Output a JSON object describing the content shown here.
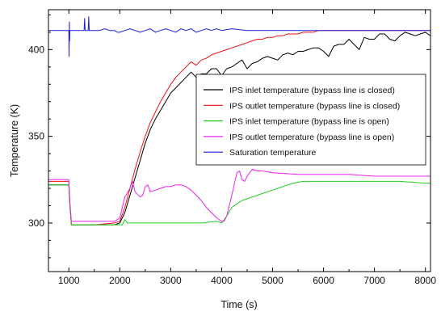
{
  "chart_data": {
    "type": "line",
    "title": "",
    "xlabel": "Time (s)",
    "ylabel": "Temperature (K)",
    "xlim": [
      600,
      8100
    ],
    "ylim": [
      272,
      423
    ],
    "xticks": [
      1000,
      2000,
      3000,
      4000,
      5000,
      6000,
      7000,
      8000
    ],
    "yticks": [
      300,
      350,
      400
    ],
    "grid": false,
    "legend_position": "center-right",
    "series": [
      {
        "name": "IPS inlet temperature (bypass line is closed)",
        "color": "#000000",
        "x": [
          600,
          1000,
          1020,
          1050,
          1100,
          1200,
          1500,
          1900,
          2000,
          2100,
          2200,
          2300,
          2400,
          2500,
          2600,
          2700,
          2800,
          2900,
          3000,
          3100,
          3200,
          3300,
          3400,
          3500,
          3600,
          3700,
          3800,
          3900,
          4000,
          4100,
          4200,
          4300,
          4400,
          4500,
          4600,
          4700,
          4800,
          4900,
          5000,
          5100,
          5200,
          5300,
          5400,
          5500,
          5600,
          5700,
          5800,
          5900,
          6000,
          6100,
          6200,
          6300,
          6400,
          6500,
          6600,
          6700,
          6800,
          6900,
          7000,
          7100,
          7200,
          7300,
          7400,
          7500,
          7600,
          7700,
          7800,
          7900,
          8000,
          8100
        ],
        "values": [
          322,
          322,
          310,
          299,
          299,
          299,
          299,
          299,
          300,
          306,
          316,
          326,
          336,
          346,
          354,
          360,
          365,
          370,
          375,
          378,
          381,
          384,
          387,
          384,
          386,
          386,
          389,
          389,
          385,
          389,
          390,
          392,
          394,
          389,
          392,
          393,
          395,
          396,
          395,
          394,
          397,
          398,
          397,
          399,
          399,
          400,
          401,
          401,
          399,
          396,
          402,
          403,
          403,
          406,
          403,
          400,
          407,
          406,
          406,
          409,
          409,
          406,
          405,
          408,
          410,
          409,
          408,
          409,
          410,
          408
        ]
      },
      {
        "name": "IPS outlet temperature (bypass line is closed)",
        "color": "#ee1111",
        "x": [
          600,
          1000,
          1020,
          1050,
          1100,
          1200,
          1500,
          1900,
          2000,
          2100,
          2200,
          2300,
          2400,
          2500,
          2600,
          2700,
          2800,
          2900,
          3000,
          3100,
          3200,
          3300,
          3400,
          3500,
          3600,
          3700,
          3800,
          3900,
          4000,
          4100,
          4200,
          4300,
          4400,
          4500,
          4600,
          4700,
          4800,
          4900,
          5000,
          5100,
          5200,
          5300,
          5400,
          5500,
          5600,
          5700,
          5800,
          5900,
          6000,
          6100,
          6200,
          6400,
          6600,
          6800,
          7000,
          7500,
          8000,
          8100
        ],
        "values": [
          324,
          324,
          312,
          299,
          299,
          299,
          299,
          300,
          301,
          309,
          320,
          331,
          341,
          350,
          358,
          364,
          370,
          375,
          380,
          384,
          387,
          390,
          393,
          391,
          394,
          395,
          397,
          398,
          399,
          400,
          401,
          402,
          403,
          404,
          405,
          406,
          406,
          407,
          407,
          408,
          408,
          409,
          409,
          409,
          410,
          410,
          410,
          411,
          411,
          411,
          411,
          411,
          411,
          411,
          411,
          411,
          411,
          411
        ]
      },
      {
        "name": "IPS inlet temperature (bypass line is open)",
        "color": "#22cc22",
        "x": [
          600,
          1000,
          1020,
          1050,
          1100,
          1500,
          1900,
          2000,
          2050,
          2100,
          2150,
          2200,
          2300,
          2500,
          2800,
          3000,
          3300,
          3600,
          3900,
          4000,
          4100,
          4200,
          4300,
          4400,
          4500,
          4600,
          4800,
          5000,
          5200,
          5400,
          5600,
          5800,
          6000,
          6500,
          7000,
          7500,
          8000,
          8100
        ],
        "values": [
          322,
          322,
          310,
          299,
          299,
          299,
          299,
          299,
          299,
          302,
          300,
          300,
          300,
          300,
          300,
          300,
          300,
          300,
          301,
          300,
          304,
          309,
          311,
          313,
          314,
          315,
          317,
          319,
          321,
          323,
          324,
          324,
          324,
          324,
          324,
          324,
          323,
          323
        ]
      },
      {
        "name": "IPS outlet temperature (bypass line is open)",
        "color": "#ee22ee",
        "x": [
          600,
          1000,
          1020,
          1050,
          1100,
          1500,
          1900,
          2000,
          2100,
          2200,
          2250,
          2300,
          2400,
          2450,
          2500,
          2550,
          2600,
          2700,
          2800,
          2900,
          3000,
          3100,
          3200,
          3300,
          3400,
          3500,
          3600,
          3700,
          3800,
          3900,
          4000,
          4050,
          4100,
          4200,
          4300,
          4350,
          4400,
          4450,
          4500,
          4600,
          4700,
          4800,
          5000,
          5500,
          6000,
          6500,
          7000,
          7500,
          8000,
          8100
        ],
        "values": [
          325,
          325,
          312,
          301,
          301,
          301,
          301,
          303,
          315,
          320,
          324,
          318,
          315,
          316,
          321,
          322,
          318,
          319,
          320,
          321,
          321,
          322,
          322,
          321,
          319,
          316,
          313,
          309,
          306,
          303,
          301,
          301,
          304,
          316,
          329,
          330,
          325,
          324,
          327,
          331,
          330,
          330,
          329,
          328,
          328,
          328,
          327,
          327,
          327,
          327
        ]
      },
      {
        "name": "Saturation temperature",
        "color": "#1f1fdd",
        "x": [
          600,
          1000,
          1005,
          1010,
          1015,
          1020,
          1100,
          1200,
          1300,
          1310,
          1320,
          1380,
          1390,
          1400,
          1500,
          1600,
          1700,
          1800,
          1900,
          1950,
          2000,
          2100,
          2200,
          2300,
          2400,
          2500,
          2600,
          2700,
          2800,
          2900,
          3000,
          3100,
          3200,
          3300,
          3400,
          3500,
          3600,
          3700,
          3800,
          3900,
          4000,
          4200,
          4500,
          5000,
          5500,
          6000,
          6500,
          7000,
          7500,
          8000,
          8100
        ],
        "values": [
          411,
          411,
          396,
          416,
          405,
          411,
          411,
          411,
          411,
          418,
          411,
          411,
          419,
          411,
          411,
          411,
          412,
          411,
          411,
          410,
          410,
          411,
          412,
          411,
          410,
          411,
          412,
          410,
          411,
          412,
          411,
          410,
          412,
          411,
          412,
          410,
          411,
          412,
          411,
          412,
          411,
          412,
          411,
          411,
          411,
          411,
          411,
          411,
          411,
          411,
          411
        ]
      }
    ]
  }
}
